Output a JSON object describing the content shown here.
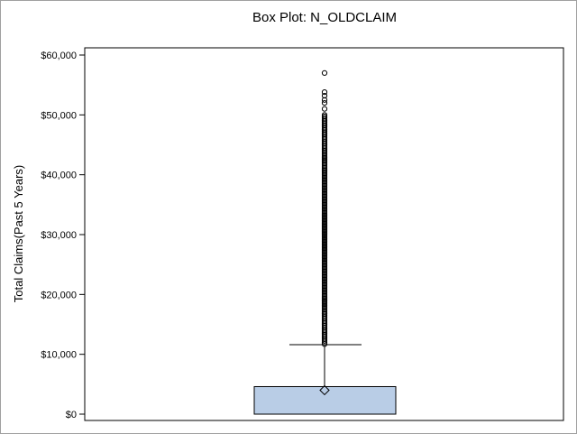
{
  "chart_data": {
    "type": "box",
    "title": "Box Plot: N_OLDCLAIM",
    "xlabel": "",
    "ylabel": "Total Claims(Past 5 Years)",
    "ylim": [
      0,
      60000
    ],
    "yticks": [
      0,
      10000,
      20000,
      30000,
      40000,
      50000,
      60000
    ],
    "ytick_labels": [
      "$0",
      "$10,000",
      "$20,000",
      "$30,000",
      "$40,000",
      "$50,000",
      "$60,000"
    ],
    "grid": false,
    "legend": "none",
    "box": {
      "q1": 0,
      "median": 0,
      "q3": 4600,
      "mean": 4000,
      "whisker_low": 0,
      "whisker_high": 11600
    },
    "outliers": [
      11700,
      12500,
      13500,
      14500,
      15500,
      17000,
      20000,
      25000,
      30000,
      35000,
      40000,
      44000,
      46000,
      48000,
      49000,
      50000,
      51000,
      52000,
      52500,
      53200,
      53800,
      57000
    ],
    "colors": {
      "box_fill": "#b9cde6",
      "box_stroke": "#000000",
      "axis": "#000000",
      "frame": "#a0a0a0"
    }
  }
}
